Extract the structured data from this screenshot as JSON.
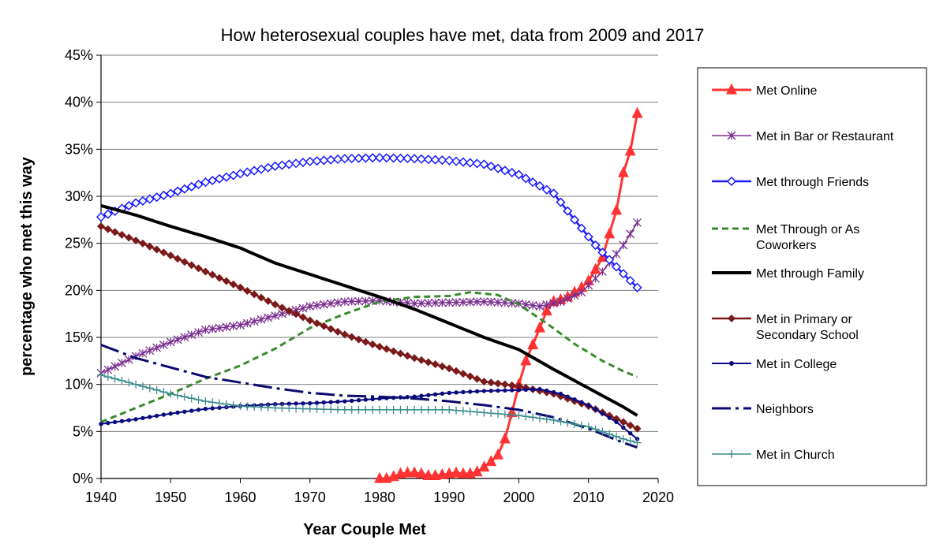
{
  "chart_data": {
    "type": "line",
    "title": "How heterosexual couples have met, data from 2009 and 2017",
    "xlabel": "Year Couple Met",
    "ylabel": "percentage who met this way",
    "xlim": [
      1940,
      2020
    ],
    "ylim": [
      0,
      45
    ],
    "x_ticks": [
      "1940",
      "1950",
      "1960",
      "1970",
      "1980",
      "1990",
      "2000",
      "2010",
      "2020"
    ],
    "y_ticks": [
      "0%",
      "5%",
      "10%",
      "15%",
      "20%",
      "25%",
      "30%",
      "35%",
      "40%",
      "45%"
    ],
    "grid": "horizontal",
    "legend_position": "right",
    "series": [
      {
        "name": "Met Online",
        "color": "#ff3333",
        "line": "solid",
        "width": 3,
        "marker": "triangle",
        "points": [
          [
            1980,
            0
          ],
          [
            1981,
            0
          ],
          [
            1982,
            0.2
          ],
          [
            1983,
            0.5
          ],
          [
            1984,
            0.6
          ],
          [
            1985,
            0.6
          ],
          [
            1986,
            0.5
          ],
          [
            1987,
            0.3
          ],
          [
            1988,
            0.3
          ],
          [
            1989,
            0.4
          ],
          [
            1990,
            0.5
          ],
          [
            1991,
            0.6
          ],
          [
            1992,
            0.5
          ],
          [
            1993,
            0.5
          ],
          [
            1994,
            0.7
          ],
          [
            1995,
            1.2
          ],
          [
            1996,
            1.8
          ],
          [
            1997,
            2.5
          ],
          [
            1998,
            4.2
          ],
          [
            1999,
            7
          ],
          [
            2000,
            10
          ],
          [
            2001,
            12.5
          ],
          [
            2002,
            14.2
          ],
          [
            2003,
            16
          ],
          [
            2004,
            17.8
          ],
          [
            2005,
            18.8
          ],
          [
            2006,
            19
          ],
          [
            2007,
            19.3
          ],
          [
            2008,
            19.8
          ],
          [
            2009,
            20.3
          ],
          [
            2010,
            21
          ],
          [
            2011,
            22.2
          ],
          [
            2012,
            23.5
          ],
          [
            2013,
            26
          ],
          [
            2014,
            28.5
          ],
          [
            2015,
            32.5
          ],
          [
            2016,
            34.8
          ],
          [
            2017,
            38.8
          ]
        ]
      },
      {
        "name": "Met in Bar or Restaurant",
        "color": "#7a2f8f",
        "line": "solid",
        "width": 1.5,
        "marker": "star",
        "points": [
          [
            1940,
            11.2
          ],
          [
            1945,
            13
          ],
          [
            1950,
            14.5
          ],
          [
            1955,
            15.8
          ],
          [
            1960,
            16.3
          ],
          [
            1965,
            17.3
          ],
          [
            1970,
            18.3
          ],
          [
            1975,
            18.8
          ],
          [
            1980,
            18.9
          ],
          [
            1985,
            18.6
          ],
          [
            1990,
            18.7
          ],
          [
            1995,
            18.8
          ],
          [
            2000,
            18.6
          ],
          [
            2003,
            18.3
          ],
          [
            2006,
            18.8
          ],
          [
            2009,
            19.8
          ],
          [
            2012,
            22
          ],
          [
            2015,
            24.8
          ],
          [
            2017,
            27.2
          ]
        ]
      },
      {
        "name": "Met through Friends",
        "color": "#1a1aff",
        "line": "solid",
        "width": 2.5,
        "marker": "diamond",
        "points": [
          [
            1940,
            27.8
          ],
          [
            1945,
            29.3
          ],
          [
            1950,
            30.3
          ],
          [
            1955,
            31.5
          ],
          [
            1960,
            32.4
          ],
          [
            1965,
            33.2
          ],
          [
            1970,
            33.7
          ],
          [
            1975,
            34
          ],
          [
            1980,
            34.1
          ],
          [
            1985,
            34.0
          ],
          [
            1990,
            33.8
          ],
          [
            1995,
            33.4
          ],
          [
            2000,
            32.3
          ],
          [
            2005,
            30.3
          ],
          [
            2008,
            27.5
          ],
          [
            2011,
            24.8
          ],
          [
            2014,
            22.5
          ],
          [
            2017,
            20.3
          ]
        ]
      },
      {
        "name": "Met Through or As Coworkers",
        "color": "#3a8a2e",
        "line": "dash",
        "width": 3,
        "marker": "none",
        "points": [
          [
            1940,
            6
          ],
          [
            1945,
            7.5
          ],
          [
            1950,
            9
          ],
          [
            1955,
            10.6
          ],
          [
            1960,
            12
          ],
          [
            1965,
            13.8
          ],
          [
            1970,
            16
          ],
          [
            1975,
            17.5
          ],
          [
            1980,
            18.8
          ],
          [
            1985,
            19.3
          ],
          [
            1990,
            19.4
          ],
          [
            1993,
            19.8
          ],
          [
            1997,
            19.5
          ],
          [
            2000,
            18.5
          ],
          [
            2004,
            16.5
          ],
          [
            2008,
            14.3
          ],
          [
            2012,
            12.5
          ],
          [
            2015,
            11.4
          ],
          [
            2017,
            10.8
          ]
        ]
      },
      {
        "name": "Met through Family",
        "color": "#000000",
        "line": "solid",
        "width": 4,
        "marker": "none",
        "points": [
          [
            1940,
            29
          ],
          [
            1945,
            28
          ],
          [
            1950,
            26.8
          ],
          [
            1955,
            25.7
          ],
          [
            1960,
            24.5
          ],
          [
            1965,
            22.9
          ],
          [
            1970,
            21.7
          ],
          [
            1975,
            20.5
          ],
          [
            1980,
            19.3
          ],
          [
            1985,
            18
          ],
          [
            1990,
            16.5
          ],
          [
            1995,
            15
          ],
          [
            2000,
            13.7
          ],
          [
            2005,
            11.6
          ],
          [
            2010,
            9.6
          ],
          [
            2015,
            7.6
          ],
          [
            2017,
            6.7
          ]
        ]
      },
      {
        "name": "Met in Primary or Secondary School",
        "color": "#7b1a1a",
        "line": "solid",
        "width": 2.5,
        "marker": "diamondfilled",
        "points": [
          [
            1940,
            26.8
          ],
          [
            1945,
            25.3
          ],
          [
            1950,
            23.7
          ],
          [
            1955,
            22
          ],
          [
            1960,
            20.3
          ],
          [
            1965,
            18.5
          ],
          [
            1970,
            16.8
          ],
          [
            1975,
            15.3
          ],
          [
            1980,
            14
          ],
          [
            1985,
            12.8
          ],
          [
            1990,
            11.7
          ],
          [
            1995,
            10.3
          ],
          [
            2000,
            9.8
          ],
          [
            2005,
            9
          ],
          [
            2010,
            7.7
          ],
          [
            2015,
            6
          ],
          [
            2017,
            5.3
          ]
        ]
      },
      {
        "name": "Met in College",
        "color": "#0a0a80",
        "line": "solid",
        "width": 2,
        "marker": "circle",
        "points": [
          [
            1940,
            5.8
          ],
          [
            1945,
            6.3
          ],
          [
            1950,
            6.9
          ],
          [
            1955,
            7.4
          ],
          [
            1960,
            7.7
          ],
          [
            1965,
            7.9
          ],
          [
            1970,
            8
          ],
          [
            1975,
            8.2
          ],
          [
            1980,
            8.5
          ],
          [
            1985,
            8.7
          ],
          [
            1990,
            9.1
          ],
          [
            1995,
            9.3
          ],
          [
            2000,
            9.4
          ],
          [
            2003,
            9.5
          ],
          [
            2006,
            9
          ],
          [
            2010,
            7.8
          ],
          [
            2014,
            6
          ],
          [
            2017,
            4.2
          ]
        ]
      },
      {
        "name": "Neighbors",
        "color": "#0a0a70",
        "line": "dashdot",
        "width": 3,
        "marker": "none",
        "points": [
          [
            1940,
            14.2
          ],
          [
            1945,
            12.8
          ],
          [
            1950,
            11.8
          ],
          [
            1955,
            10.8
          ],
          [
            1960,
            10.2
          ],
          [
            1965,
            9.6
          ],
          [
            1970,
            9.1
          ],
          [
            1975,
            8.8
          ],
          [
            1980,
            8.7
          ],
          [
            1985,
            8.5
          ],
          [
            1990,
            8.2
          ],
          [
            1995,
            7.8
          ],
          [
            2000,
            7.3
          ],
          [
            2005,
            6.5
          ],
          [
            2010,
            5.3
          ],
          [
            2015,
            3.8
          ],
          [
            2017,
            3.3
          ]
        ]
      },
      {
        "name": "Met in Church",
        "color": "#3c8c8c",
        "line": "solid",
        "width": 1.5,
        "marker": "plus",
        "points": [
          [
            1940,
            11
          ],
          [
            1945,
            10
          ],
          [
            1950,
            9
          ],
          [
            1955,
            8.2
          ],
          [
            1960,
            7.7
          ],
          [
            1965,
            7.5
          ],
          [
            1970,
            7.4
          ],
          [
            1975,
            7.3
          ],
          [
            1980,
            7.3
          ],
          [
            1985,
            7.3
          ],
          [
            1990,
            7.3
          ],
          [
            1995,
            7
          ],
          [
            2000,
            6.7
          ],
          [
            2005,
            6.2
          ],
          [
            2010,
            5.5
          ],
          [
            2015,
            4.2
          ],
          [
            2017,
            3.8
          ]
        ]
      }
    ]
  }
}
